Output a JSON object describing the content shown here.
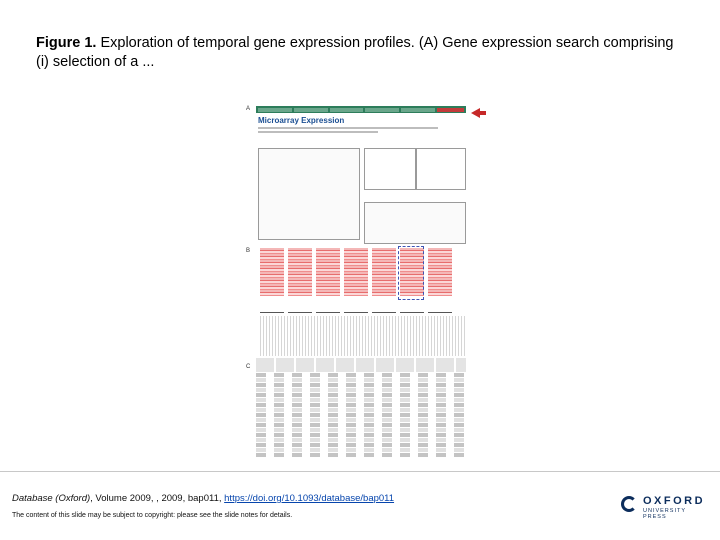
{
  "title": {
    "bold": "Figure 1.",
    "rest": " Exploration of temporal gene expression profiles. (A) Gene expression search comprising (i) selection of a ..."
  },
  "figure": {
    "panels": [
      "A",
      "B",
      "C"
    ],
    "panel_a_heading": "Microarray Expression"
  },
  "citation": {
    "journal": "Database (Oxford)",
    "details": ", Volume 2009, , 2009, bap011, ",
    "doi": "https://doi.org/10.1093/database/bap011"
  },
  "copyright": "The content of this slide may be subject to copyright: please see the slide notes for details.",
  "logo": {
    "name": "OXFORD",
    "sub": "UNIVERSITY PRESS",
    "color": "#0c2d5c"
  }
}
